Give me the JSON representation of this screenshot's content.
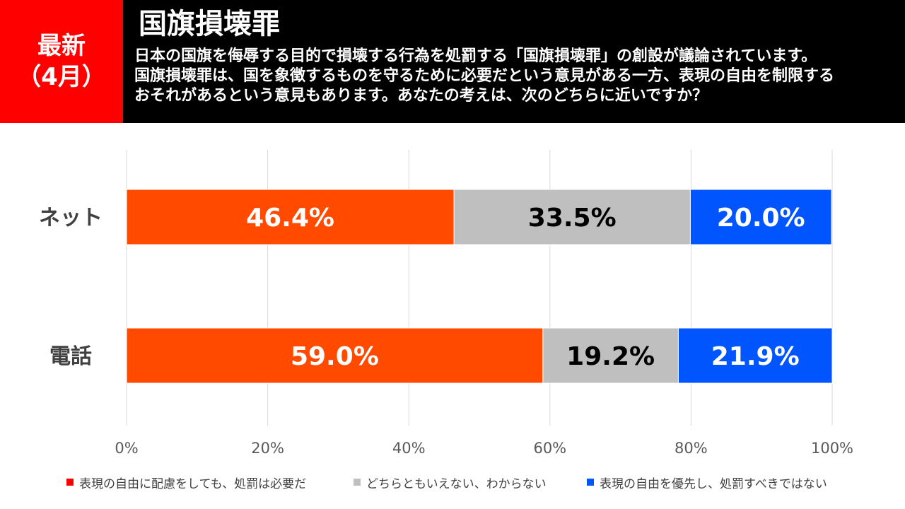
{
  "header": {
    "badge_line1": "最新",
    "badge_line2": "（4月）",
    "title": "国旗損壊罪",
    "question_lines": [
      "日本の国旗を侮辱する目的で損壊する行為を処罰する「国旗損壊罪」の創設が議論されています。",
      "国旗損壊罪は、国を象徴するものを守るために必要だという意見がある一方、表現の自由を制限する",
      "おそれがあるという意見もあります。あなたの考えは、次のどちらに近いですか？"
    ]
  },
  "colors": {
    "header_bg": "#000000",
    "badge_bg": "#ff0000",
    "series1": "#ff4a00",
    "series2": "#bfbfbf",
    "series3": "#0055ff",
    "legend_swatch1": "#ff0000"
  },
  "chart_data": {
    "type": "bar",
    "orientation": "horizontal",
    "stacked": true,
    "categories": [
      "ネット",
      "電話"
    ],
    "series": [
      {
        "name": "表現の自由に配慮をしても、処罰は必要だ",
        "values": [
          46.4,
          59.0
        ],
        "labels": [
          "46.4%",
          "59.0%"
        ]
      },
      {
        "name": "どちらともいえない、わからない",
        "values": [
          33.5,
          19.2
        ],
        "labels": [
          "33.5%",
          "19.2%"
        ]
      },
      {
        "name": "表現の自由を優先し、処罰すべきではない",
        "values": [
          20.0,
          21.9
        ],
        "labels": [
          "20.0%",
          "21.9%"
        ]
      }
    ],
    "xlim": [
      0,
      100
    ],
    "x_ticks": [
      "0%",
      "20%",
      "40%",
      "60%",
      "80%",
      "100%"
    ],
    "grid": true,
    "legend_position": "bottom"
  }
}
